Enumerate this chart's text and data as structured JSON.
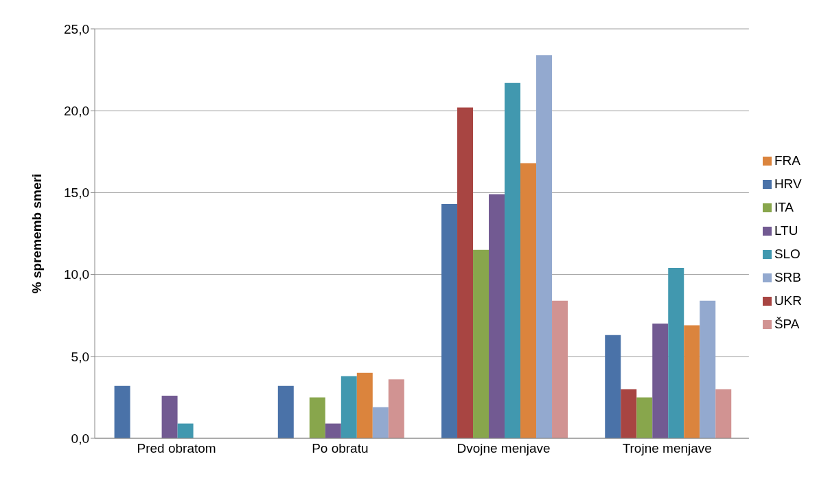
{
  "chart_data": {
    "type": "bar",
    "ylabel": "% sprememb smeri",
    "categories": [
      "Pred obratom",
      "Po obratu",
      "Dvojne menjave",
      "Trojne menjave"
    ],
    "series": [
      {
        "name": "HRV",
        "color": "#4a72a8",
        "values": [
          3.2,
          3.2,
          14.3,
          6.3
        ]
      },
      {
        "name": "UKR",
        "color": "#a84542",
        "values": [
          0,
          0,
          20.2,
          3.0
        ]
      },
      {
        "name": "ITA",
        "color": "#88a64c",
        "values": [
          0,
          2.5,
          11.5,
          2.5
        ]
      },
      {
        "name": "LTU",
        "color": "#725a92",
        "values": [
          2.6,
          0.9,
          14.9,
          7.0
        ]
      },
      {
        "name": "SLO",
        "color": "#4198af",
        "values": [
          0.9,
          3.8,
          21.7,
          10.4
        ]
      },
      {
        "name": "FRA",
        "color": "#db843d",
        "values": [
          0,
          4.0,
          16.8,
          6.9
        ]
      },
      {
        "name": "SRB",
        "color": "#93a9cf",
        "values": [
          0,
          1.9,
          23.4,
          8.4
        ]
      },
      {
        "name": "ŠPA",
        "color": "#d19392",
        "values": [
          0,
          3.6,
          8.4,
          3.0
        ]
      }
    ],
    "ylim": [
      0,
      25
    ],
    "yticks": [
      {
        "value": 0,
        "label": "0,0"
      },
      {
        "value": 5,
        "label": "5,0"
      },
      {
        "value": 10,
        "label": "10,0"
      },
      {
        "value": 15,
        "label": "15,0"
      },
      {
        "value": 20,
        "label": "20,0"
      },
      {
        "value": 25,
        "label": "25,0"
      }
    ],
    "grid": "y",
    "legend": "right"
  }
}
